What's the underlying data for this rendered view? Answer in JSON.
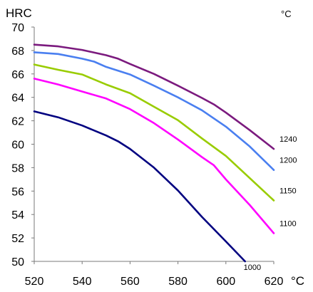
{
  "chart_data": {
    "type": "line",
    "title": "",
    "xlabel": "",
    "ylabel": "HRC",
    "x_unit": "°C",
    "series_unit": "°C",
    "xlim": [
      520,
      620
    ],
    "ylim": [
      50,
      70
    ],
    "x_ticks": [
      "520",
      "540",
      "560",
      "580",
      "600",
      "620"
    ],
    "y_ticks": [
      "50",
      "52",
      "54",
      "56",
      "58",
      "60",
      "62",
      "64",
      "66",
      "68",
      "70"
    ],
    "grid": "none",
    "series": [
      {
        "name": "1240",
        "color": "#7b1a7e",
        "points": [
          [
            520,
            68.5
          ],
          [
            530,
            68.35
          ],
          [
            540,
            68.05
          ],
          [
            550,
            67.6
          ],
          [
            555,
            67.3
          ],
          [
            560,
            66.85
          ],
          [
            570,
            66.0
          ],
          [
            580,
            65.0
          ],
          [
            590,
            63.95
          ],
          [
            595,
            63.4
          ],
          [
            600,
            62.7
          ],
          [
            610,
            61.2
          ],
          [
            620,
            59.6
          ]
        ]
      },
      {
        "name": "1200",
        "color": "#4a7ff0",
        "points": [
          [
            520,
            67.85
          ],
          [
            530,
            67.7
          ],
          [
            540,
            67.3
          ],
          [
            545,
            67.05
          ],
          [
            550,
            66.6
          ],
          [
            560,
            65.95
          ],
          [
            570,
            65.0
          ],
          [
            580,
            64.0
          ],
          [
            590,
            62.9
          ],
          [
            600,
            61.5
          ],
          [
            610,
            59.8
          ],
          [
            620,
            57.8
          ]
        ]
      },
      {
        "name": "1150",
        "color": "#99cc00",
        "points": [
          [
            520,
            66.8
          ],
          [
            530,
            66.35
          ],
          [
            540,
            65.95
          ],
          [
            550,
            65.1
          ],
          [
            560,
            64.35
          ],
          [
            570,
            63.2
          ],
          [
            580,
            62.05
          ],
          [
            590,
            60.5
          ],
          [
            600,
            59.0
          ],
          [
            610,
            57.1
          ],
          [
            620,
            55.2
          ]
        ]
      },
      {
        "name": "1100",
        "color": "#ff00ff",
        "points": [
          [
            520,
            65.6
          ],
          [
            530,
            65.1
          ],
          [
            540,
            64.5
          ],
          [
            550,
            63.9
          ],
          [
            560,
            63.0
          ],
          [
            570,
            61.8
          ],
          [
            580,
            60.4
          ],
          [
            590,
            58.9
          ],
          [
            595,
            58.2
          ],
          [
            600,
            57.0
          ],
          [
            610,
            54.8
          ],
          [
            620,
            52.4
          ]
        ]
      },
      {
        "name": "1000",
        "color": "#000080",
        "points": [
          [
            520,
            62.8
          ],
          [
            530,
            62.3
          ],
          [
            540,
            61.6
          ],
          [
            550,
            60.75
          ],
          [
            555,
            60.25
          ],
          [
            560,
            59.6
          ],
          [
            570,
            58.0
          ],
          [
            580,
            56.05
          ],
          [
            590,
            53.8
          ],
          [
            600,
            51.7
          ],
          [
            608,
            50.0
          ]
        ]
      }
    ],
    "series_labels_position": "right-end"
  }
}
